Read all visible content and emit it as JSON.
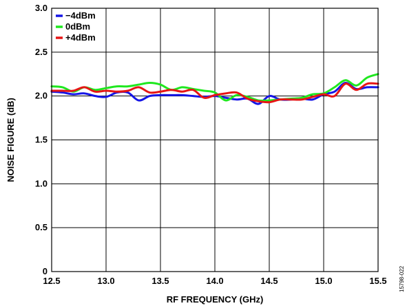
{
  "chart_data": {
    "type": "line",
    "xlabel": "RF FREQUENCY (GHz)",
    "ylabel": "NOISE FIGURE (dB)",
    "xlim": [
      12.5,
      15.5
    ],
    "ylim": [
      0,
      3.0
    ],
    "xticks": [
      "12.5",
      "13.0",
      "13.5",
      "14.0",
      "14.5",
      "15.0",
      "15.5"
    ],
    "yticks": [
      "0",
      "0.5",
      "1.0",
      "1.5",
      "2.0",
      "2.5",
      "3.0"
    ],
    "grid": true,
    "legend_position": "top-left",
    "series": [
      {
        "name": "−4dBm",
        "color": "#1515e6",
        "x": [
          12.5,
          12.6,
          12.7,
          12.8,
          12.9,
          13.0,
          13.1,
          13.2,
          13.3,
          13.4,
          13.5,
          13.6,
          13.7,
          13.8,
          13.9,
          14.0,
          14.1,
          14.2,
          14.3,
          14.4,
          14.5,
          14.6,
          14.7,
          14.8,
          14.9,
          15.0,
          15.1,
          15.2,
          15.3,
          15.4,
          15.5
        ],
        "y": [
          2.05,
          2.04,
          2.02,
          2.03,
          2.0,
          1.99,
          2.04,
          2.04,
          1.95,
          2.0,
          2.01,
          2.01,
          2.01,
          2.0,
          1.99,
          2.0,
          1.98,
          1.96,
          1.97,
          1.91,
          2.0,
          1.96,
          1.96,
          1.97,
          1.96,
          2.02,
          2.05,
          2.15,
          2.08,
          2.1,
          2.1
        ]
      },
      {
        "name": "0dBm",
        "color": "#1fe81f",
        "x": [
          12.5,
          12.6,
          12.7,
          12.8,
          12.9,
          13.0,
          13.1,
          13.2,
          13.3,
          13.4,
          13.5,
          13.6,
          13.7,
          13.8,
          13.9,
          14.0,
          14.1,
          14.2,
          14.3,
          14.4,
          14.5,
          14.6,
          14.7,
          14.8,
          14.9,
          15.0,
          15.1,
          15.2,
          15.3,
          15.4,
          15.5
        ],
        "y": [
          2.11,
          2.1,
          2.05,
          2.1,
          2.07,
          2.09,
          2.11,
          2.11,
          2.13,
          2.15,
          2.13,
          2.07,
          2.1,
          2.08,
          2.06,
          2.04,
          1.95,
          2.01,
          1.99,
          1.95,
          1.95,
          1.96,
          1.97,
          1.98,
          2.02,
          2.03,
          2.1,
          2.18,
          2.12,
          2.21,
          2.25
        ]
      },
      {
        "name": "+4dBm",
        "color": "#e61515",
        "x": [
          12.5,
          12.6,
          12.7,
          12.8,
          12.9,
          13.0,
          13.1,
          13.2,
          13.3,
          13.4,
          13.5,
          13.6,
          13.7,
          13.8,
          13.9,
          14.0,
          14.1,
          14.2,
          14.3,
          14.4,
          14.5,
          14.6,
          14.7,
          14.8,
          14.9,
          15.0,
          15.1,
          15.2,
          15.3,
          15.4,
          15.5
        ],
        "y": [
          2.06,
          2.06,
          2.06,
          2.1,
          2.05,
          2.06,
          2.05,
          2.06,
          2.1,
          2.04,
          2.05,
          2.07,
          2.05,
          2.07,
          1.98,
          2.01,
          2.03,
          2.04,
          1.97,
          1.94,
          1.93,
          1.96,
          1.96,
          1.96,
          1.99,
          2.02,
          2.0,
          2.14,
          2.07,
          2.14,
          2.14
        ]
      }
    ]
  },
  "watermark": "15798-022"
}
